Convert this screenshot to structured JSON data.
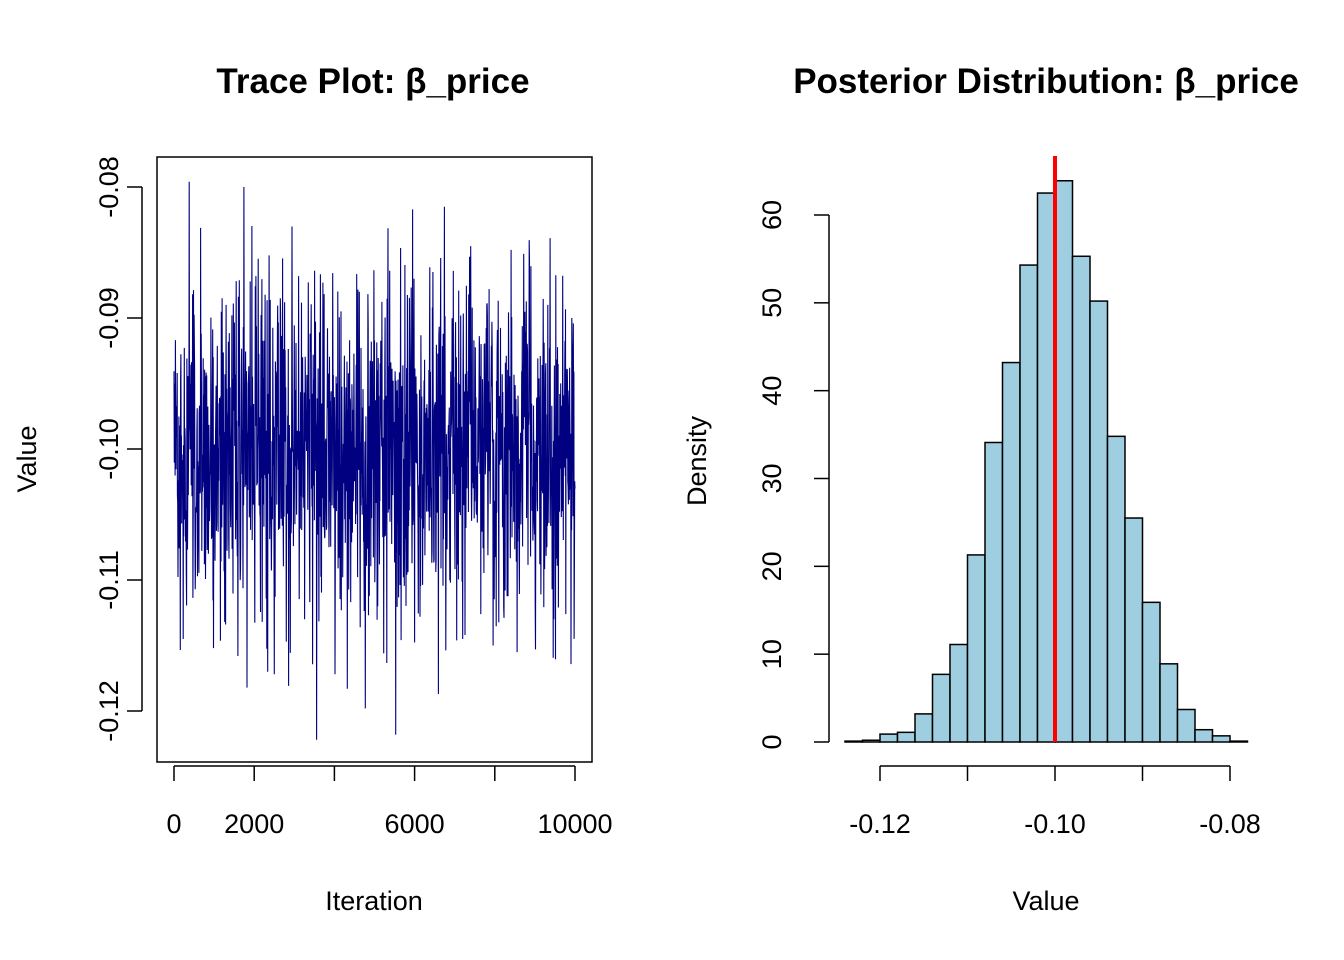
{
  "chart_data": [
    {
      "type": "line",
      "title": "Trace Plot: β_price",
      "xlabel": "Iteration",
      "ylabel": "Value",
      "xlim": [
        0,
        10000
      ],
      "ylim": [
        -0.1225,
        -0.0795
      ],
      "x_ticks": [
        0,
        2000,
        4000,
        6000,
        8000,
        10000
      ],
      "x_tick_labels": [
        "0",
        "2000",
        "",
        "6000",
        "",
        "10000"
      ],
      "y_ticks": [
        -0.12,
        -0.11,
        -0.1,
        -0.09,
        -0.08
      ],
      "y_tick_labels": [
        "-0.12",
        "-0.11",
        "-0.10",
        "-0.09",
        "-0.08"
      ],
      "color": "#000080",
      "series": [
        {
          "n_iterations": 10000,
          "mean": -0.1,
          "min": -0.1222,
          "max": -0.0796,
          "values_sampled": [
            -0.0942,
            -0.1145,
            -0.0796,
            -0.1107,
            -0.0912,
            -0.103,
            -0.1152,
            -0.0961,
            -0.1134,
            -0.0898,
            -0.1158,
            -0.08,
            -0.1049,
            -0.0868,
            -0.1132,
            -0.0958,
            -0.1172,
            -0.0885,
            -0.1147,
            -0.1002,
            -0.0868,
            -0.113,
            -0.0917,
            -0.1222,
            -0.0873,
            -0.1075,
            -0.1172,
            -0.0895,
            -0.1183,
            -0.104,
            -0.088,
            -0.1198,
            -0.0918,
            -0.112,
            -0.1156,
            -0.0864,
            -0.1218,
            -0.0952,
            -0.1094,
            -0.087,
            -0.1128,
            -0.099,
            -0.0892,
            -0.1187,
            -0.0815,
            -0.1102,
            -0.093,
            -0.1145,
            -0.0882,
            -0.104,
            -0.1126,
            -0.089,
            -0.115,
            -0.096,
            -0.1108,
            -0.0848,
            -0.1155,
            -0.0985,
            -0.0858,
            -0.1153,
            -0.1032,
            -0.089,
            -0.113,
            -0.0958,
            -0.1126,
            -0.09
          ]
        }
      ]
    },
    {
      "type": "bar",
      "subtype": "histogram",
      "title": "Posterior Distribution: β_price",
      "xlabel": "Value",
      "ylabel": "Density",
      "xlim": [
        -0.125,
        -0.077
      ],
      "ylim": [
        0,
        64
      ],
      "x_ticks": [
        -0.12,
        -0.11,
        -0.1,
        -0.09,
        -0.08
      ],
      "x_tick_labels": [
        "-0.12",
        "",
        "-0.10",
        "",
        "-0.08"
      ],
      "y_ticks": [
        0,
        10,
        20,
        30,
        40,
        50,
        60
      ],
      "y_tick_labels": [
        "0",
        "10",
        "20",
        "30",
        "40",
        "50",
        "60"
      ],
      "bin_edges": [
        -0.124,
        -0.122,
        -0.12,
        -0.118,
        -0.116,
        -0.114,
        -0.112,
        -0.11,
        -0.108,
        -0.106,
        -0.104,
        -0.102,
        -0.1,
        -0.098,
        -0.096,
        -0.094,
        -0.092,
        -0.09,
        -0.088,
        -0.086,
        -0.084,
        -0.082,
        -0.08,
        -0.078
      ],
      "values": [
        0.1,
        0.2,
        0.9,
        1.1,
        3.2,
        7.7,
        11.1,
        21.3,
        34.1,
        43.2,
        54.3,
        62.5,
        63.9,
        55.3,
        50.2,
        34.8,
        25.5,
        15.9,
        8.9,
        3.7,
        1.4,
        0.7,
        0.1
      ],
      "bar_color": "#9ecee0",
      "reference_line": {
        "x": -0.1,
        "color": "#ff0000"
      }
    }
  ]
}
